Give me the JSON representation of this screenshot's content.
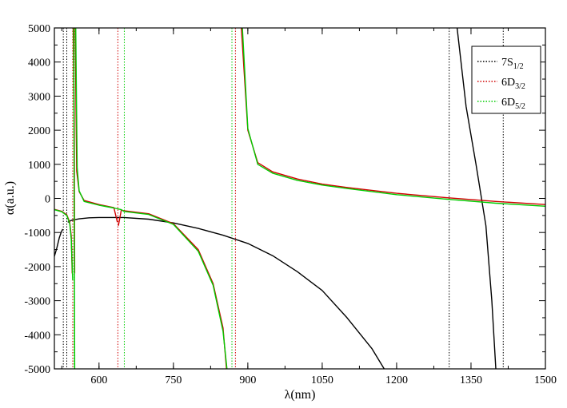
{
  "chart_data": {
    "type": "line",
    "xlabel": "λ(nm)",
    "ylabel": "α(a.u.)",
    "xlim": [
      510,
      1500
    ],
    "ylim": [
      -5000,
      5000
    ],
    "xticks": [
      600,
      750,
      900,
      1050,
      1200,
      1350,
      1500
    ],
    "yticks": [
      -5000,
      -4000,
      -3000,
      -2000,
      -1000,
      0,
      1000,
      2000,
      3000,
      4000,
      5000
    ],
    "grid": false,
    "legend_position": "top-right",
    "colors": {
      "7S1/2": "#000000",
      "6D3/2": "#d00000",
      "6D5/2": "#00cc00"
    },
    "legend": [
      {
        "key": "7S1/2",
        "base": "7S",
        "sub": "1/2"
      },
      {
        "key": "6D3/2",
        "base": "6D",
        "sub": "3/2"
      },
      {
        "key": "6D5/2",
        "base": "6D",
        "sub": "5/2"
      }
    ],
    "resonance_lines": [
      {
        "key": "7S1/2",
        "x": [
          528,
          535,
          1306,
          1415
        ]
      },
      {
        "key": "6D3/2",
        "x": [
          547,
          638,
          875
        ]
      },
      {
        "key": "6D5/2",
        "x": [
          550,
          651,
          868
        ]
      }
    ],
    "series": [
      {
        "key": "7S1/2",
        "segments": [
          [
            [
              510,
              -1700
            ],
            [
              515,
              -1450
            ],
            [
              520,
              -1150
            ],
            [
              524,
              -980
            ],
            [
              527,
              -900
            ]
          ],
          [
            [
              537,
              -700
            ],
            [
              545,
              -640
            ],
            [
              560,
              -600
            ],
            [
              580,
              -570
            ],
            [
              600,
              -560
            ],
            [
              650,
              -560
            ],
            [
              700,
              -610
            ],
            [
              750,
              -720
            ],
            [
              800,
              -880
            ],
            [
              850,
              -1080
            ],
            [
              900,
              -1320
            ],
            [
              950,
              -1680
            ],
            [
              1000,
              -2150
            ],
            [
              1050,
              -2700
            ],
            [
              1100,
              -3500
            ],
            [
              1150,
              -4400
            ],
            [
              1175,
              -5000
            ]
          ],
          [
            [
              1322,
              5000
            ],
            [
              1340,
              2700
            ],
            [
              1360,
              1000
            ],
            [
              1380,
              -800
            ],
            [
              1392,
              -3000
            ],
            [
              1400,
              -5000
            ]
          ]
        ]
      },
      {
        "key": "6D3/2",
        "segments": [
          [
            [
              510,
              -320
            ],
            [
              525,
              -380
            ],
            [
              535,
              -480
            ],
            [
              541,
              -700
            ],
            [
              544,
              -1100
            ],
            [
              546,
              -2200
            ]
          ],
          [
            [
              548,
              5000
            ],
            [
              550,
              2400
            ],
            [
              551,
              -2200
            ]
          ],
          [
            [
              552,
              5000
            ],
            [
              555,
              800
            ],
            [
              560,
              200
            ],
            [
              570,
              -60
            ],
            [
              600,
              -180
            ],
            [
              630,
              -270
            ],
            [
              637,
              -700
            ]
          ],
          [
            [
              639,
              -800
            ],
            [
              645,
              -340
            ],
            [
              650,
              -360
            ],
            [
              655,
              -370
            ],
            [
              700,
              -450
            ],
            [
              750,
              -740
            ],
            [
              800,
              -1500
            ],
            [
              830,
              -2500
            ],
            [
              850,
              -3800
            ],
            [
              857,
              -5000
            ]
          ],
          [
            [
              887,
              5000
            ],
            [
              900,
              2000
            ],
            [
              920,
              1050
            ],
            [
              950,
              780
            ],
            [
              1000,
              570
            ],
            [
              1050,
              420
            ],
            [
              1100,
              320
            ],
            [
              1200,
              150
            ],
            [
              1300,
              20
            ],
            [
              1400,
              -90
            ],
            [
              1500,
              -180
            ]
          ]
        ]
      },
      {
        "key": "6D5/2",
        "segments": [
          [
            [
              510,
              -330
            ],
            [
              525,
              -390
            ],
            [
              535,
              -500
            ],
            [
              541,
              -740
            ],
            [
              544,
              -1200
            ],
            [
              547,
              -2400
            ]
          ],
          [
            [
              549,
              5000
            ],
            [
              551,
              -5000
            ]
          ],
          [
            [
              553,
              5000
            ],
            [
              556,
              900
            ],
            [
              560,
              220
            ],
            [
              570,
              -90
            ],
            [
              600,
              -200
            ],
            [
              630,
              -280
            ],
            [
              645,
              -330
            ],
            [
              650,
              -380
            ],
            [
              655,
              -390
            ],
            [
              700,
              -470
            ],
            [
              750,
              -760
            ],
            [
              800,
              -1550
            ],
            [
              830,
              -2550
            ],
            [
              850,
              -3900
            ],
            [
              858,
              -5000
            ]
          ],
          [
            [
              889,
              5000
            ],
            [
              900,
              2050
            ],
            [
              920,
              1000
            ],
            [
              950,
              740
            ],
            [
              1000,
              530
            ],
            [
              1050,
              390
            ],
            [
              1100,
              290
            ],
            [
              1200,
              110
            ],
            [
              1300,
              -20
            ],
            [
              1400,
              -140
            ],
            [
              1500,
              -230
            ]
          ]
        ]
      }
    ]
  }
}
